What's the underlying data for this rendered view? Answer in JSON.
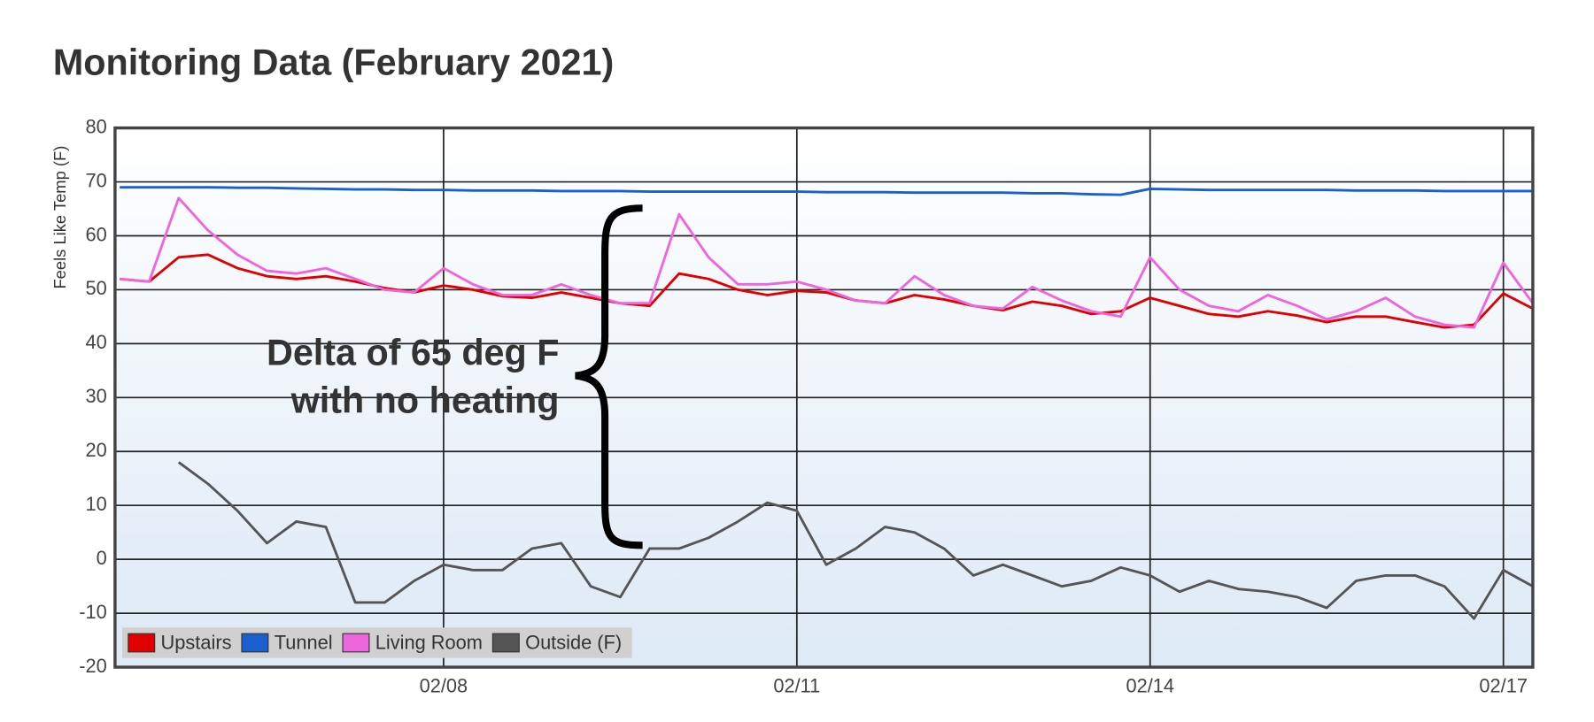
{
  "chart_data": {
    "type": "line",
    "title": "Monitoring Data (February 2021)",
    "ylabel": "Feels Like Temp (F)",
    "annotations": [
      "Delta of 65 deg F",
      "with no heating"
    ],
    "x": [
      5.25,
      5.5,
      5.75,
      6,
      6.25,
      6.5,
      6.75,
      7,
      7.25,
      7.5,
      7.75,
      8,
      8.25,
      8.5,
      8.75,
      9,
      9.25,
      9.5,
      9.75,
      10,
      10.25,
      10.5,
      10.75,
      11,
      11.25,
      11.5,
      11.75,
      12,
      12.25,
      12.5,
      12.75,
      13,
      13.25,
      13.5,
      13.75,
      14,
      14.25,
      14.5,
      14.75,
      15,
      15.25,
      15.5,
      15.75,
      16,
      16.25,
      16.5,
      16.75,
      17,
      17.25
    ],
    "xlim": [
      5.21,
      17.25
    ],
    "xticks": [
      {
        "value": 8,
        "label": "02/08"
      },
      {
        "value": 11,
        "label": "02/11"
      },
      {
        "value": 14,
        "label": "02/14"
      },
      {
        "value": 17,
        "label": "02/17"
      }
    ],
    "ylim": [
      -20,
      80
    ],
    "yticks": [
      -20,
      -10,
      0,
      10,
      20,
      30,
      40,
      50,
      60,
      70,
      80
    ],
    "grid": true,
    "legend": "lower left",
    "series": [
      {
        "name": "Upstairs",
        "color": "#e00000",
        "values": [
          52,
          51.5,
          56,
          56.5,
          54,
          52.5,
          52,
          52.5,
          51.5,
          50.3,
          49.5,
          50.8,
          50,
          48.8,
          48.5,
          49.5,
          48.5,
          47.5,
          47,
          53,
          52,
          50,
          49,
          49.8,
          49.5,
          48,
          47.5,
          49,
          48.2,
          47,
          46.2,
          47.8,
          47,
          45.5,
          46,
          48.5,
          47,
          45.5,
          45,
          46,
          45.2,
          44,
          45,
          45,
          44,
          43,
          43.5,
          49.3,
          46.5
        ]
      },
      {
        "name": "Tunnel",
        "color": "#1a5fd0",
        "values": [
          69,
          69,
          69,
          69,
          68.9,
          68.9,
          68.8,
          68.7,
          68.6,
          68.6,
          68.5,
          68.5,
          68.4,
          68.4,
          68.4,
          68.3,
          68.3,
          68.3,
          68.2,
          68.2,
          68.2,
          68.2,
          68.2,
          68.2,
          68.1,
          68.1,
          68.1,
          68,
          68,
          68,
          68,
          67.9,
          67.9,
          67.7,
          67.6,
          68.7,
          68.6,
          68.5,
          68.5,
          68.5,
          68.5,
          68.5,
          68.4,
          68.4,
          68.4,
          68.3,
          68.3,
          68.3,
          68.3
        ]
      },
      {
        "name": "Living Room",
        "color": "#ee66dd",
        "values": [
          52,
          51.5,
          67,
          61,
          56.5,
          53.5,
          53,
          54,
          52,
          50,
          49.5,
          54,
          51,
          49,
          49,
          51,
          49,
          47.5,
          47.5,
          64,
          56,
          51,
          51,
          51.5,
          50,
          48,
          47.5,
          52.5,
          49,
          47,
          46.5,
          50.5,
          48,
          46,
          45,
          56,
          50,
          47,
          46,
          49,
          47,
          44.5,
          46,
          48.5,
          45,
          43.5,
          43,
          55,
          47.5
        ]
      },
      {
        "name": "Outside (F)",
        "color": "#555555",
        "values": [
          null,
          null,
          18,
          14,
          9,
          3,
          7,
          6,
          -8,
          -8,
          -4,
          -1,
          -2,
          -2,
          2,
          3,
          -5,
          -7,
          2,
          2,
          4,
          7,
          10.5,
          9,
          -1,
          2,
          6,
          5,
          2,
          -3,
          -1,
          -3,
          -5,
          -4,
          -1.5,
          -3,
          -6,
          -4,
          -5.5,
          -6,
          -7,
          -9,
          -4,
          -3,
          -3,
          -5,
          -11,
          -2,
          -5
        ]
      }
    ]
  }
}
